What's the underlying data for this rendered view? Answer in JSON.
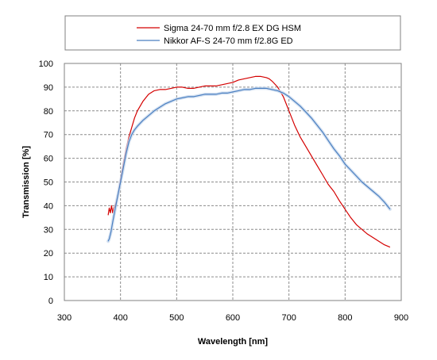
{
  "chart_data": {
    "type": "line",
    "title": "",
    "xlabel": "Wavelength [nm]",
    "ylabel": "Transmission [%]",
    "xlim": [
      300,
      900
    ],
    "ylim": [
      0,
      100
    ],
    "xticks": [
      300,
      400,
      500,
      600,
      700,
      800,
      900
    ],
    "yticks": [
      0,
      10,
      20,
      30,
      40,
      50,
      60,
      70,
      80,
      90,
      100
    ],
    "grid": true,
    "grid_style": "dashed",
    "legend_position": "top",
    "series": [
      {
        "name": "Sigma 24-70 mm f/2.8 EX DG HSM",
        "color": "#d40000",
        "x": [
          378,
          380,
          382,
          384,
          386,
          388,
          390,
          393,
          396,
          400,
          405,
          410,
          415,
          420,
          425,
          430,
          440,
          450,
          460,
          470,
          480,
          490,
          500,
          510,
          520,
          530,
          540,
          550,
          560,
          570,
          580,
          590,
          600,
          610,
          620,
          630,
          640,
          650,
          660,
          665,
          670,
          680,
          690,
          700,
          710,
          720,
          730,
          740,
          750,
          760,
          770,
          780,
          790,
          800,
          810,
          820,
          830,
          840,
          850,
          860,
          870,
          880
        ],
        "y": [
          36,
          39,
          37,
          40,
          37,
          39,
          40,
          42,
          45,
          51,
          58,
          64,
          69,
          73,
          77,
          80,
          84,
          87,
          88.5,
          89,
          89,
          89.5,
          90,
          90,
          89.5,
          89.5,
          90,
          90.5,
          90.5,
          90.5,
          91,
          91.5,
          92,
          93,
          93.5,
          94,
          94.5,
          94.5,
          94,
          93.5,
          92.5,
          90,
          86,
          80,
          74,
          69,
          65,
          61,
          57,
          53,
          49,
          46,
          42,
          38.5,
          35,
          32,
          30,
          28,
          26.5,
          25,
          23.5,
          22.5
        ]
      },
      {
        "name": "Nikkor AF-S 24-70 mm f/2.8G ED",
        "color": "#4a7fc1",
        "x": [
          378,
          380,
          383,
          386,
          390,
          395,
          400,
          405,
          410,
          415,
          420,
          425,
          430,
          440,
          450,
          460,
          470,
          480,
          490,
          500,
          510,
          520,
          530,
          540,
          550,
          560,
          570,
          580,
          590,
          600,
          610,
          620,
          630,
          640,
          650,
          660,
          670,
          680,
          690,
          700,
          710,
          720,
          730,
          740,
          750,
          760,
          770,
          780,
          790,
          800,
          810,
          820,
          830,
          840,
          850,
          860,
          870,
          880
        ],
        "y": [
          25,
          26,
          29,
          33,
          38,
          44,
          50,
          56,
          62,
          67,
          70,
          72,
          73.5,
          76,
          78,
          80,
          81.5,
          83,
          84,
          85,
          85.5,
          86,
          86,
          86.5,
          87,
          87,
          87,
          87.5,
          87.5,
          88,
          88.5,
          89,
          89,
          89.5,
          89.5,
          89.5,
          89,
          88.5,
          87.5,
          86,
          84,
          82,
          79.5,
          77,
          74,
          71,
          67.5,
          64,
          61,
          57.5,
          55,
          52.5,
          50,
          48,
          46,
          44,
          41.5,
          38.5
        ]
      }
    ]
  }
}
